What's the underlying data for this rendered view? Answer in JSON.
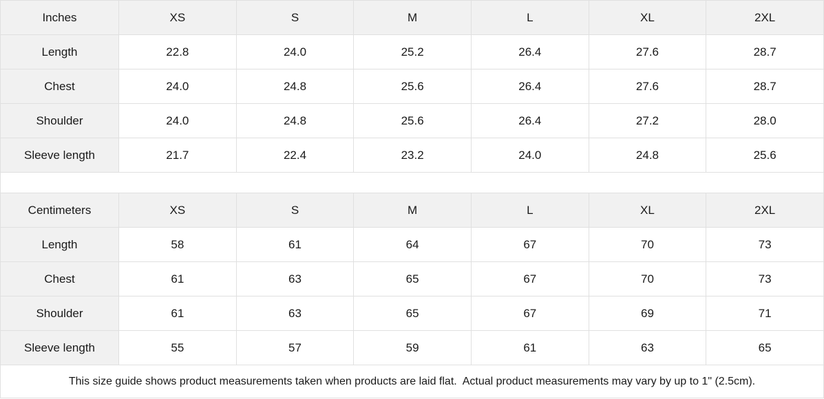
{
  "chart_data": [
    {
      "type": "table",
      "unit": "Inches",
      "columns": [
        "Inches",
        "XS",
        "S",
        "M",
        "L",
        "XL",
        "2XL"
      ],
      "rows": [
        {
          "label": "Length",
          "values": [
            "22.8",
            "24.0",
            "25.2",
            "26.4",
            "27.6",
            "28.7"
          ]
        },
        {
          "label": "Chest",
          "values": [
            "24.0",
            "24.8",
            "25.6",
            "26.4",
            "27.6",
            "28.7"
          ]
        },
        {
          "label": "Shoulder",
          "values": [
            "24.0",
            "24.8",
            "25.6",
            "26.4",
            "27.2",
            "28.0"
          ]
        },
        {
          "label": "Sleeve length",
          "values": [
            "21.7",
            "22.4",
            "23.2",
            "24.0",
            "24.8",
            "25.6"
          ]
        }
      ]
    },
    {
      "type": "table",
      "unit": "Centimeters",
      "columns": [
        "Centimeters",
        "XS",
        "S",
        "M",
        "L",
        "XL",
        "2XL"
      ],
      "rows": [
        {
          "label": "Length",
          "values": [
            "58",
            "61",
            "64",
            "67",
            "70",
            "73"
          ]
        },
        {
          "label": "Chest",
          "values": [
            "61",
            "63",
            "65",
            "67",
            "70",
            "73"
          ]
        },
        {
          "label": "Shoulder",
          "values": [
            "61",
            "63",
            "65",
            "67",
            "69",
            "71"
          ]
        },
        {
          "label": "Sleeve length",
          "values": [
            "55",
            "57",
            "59",
            "61",
            "63",
            "65"
          ]
        }
      ]
    }
  ],
  "footer": {
    "note": "This size guide shows product measurements taken when products are laid flat.  Actual product measurements may vary by up to 1\" (2.5cm)."
  },
  "colors": {
    "header_background": "#f1f1f1",
    "border": "#e0e0e0",
    "text": "#1a1a1a",
    "background": "#ffffff"
  }
}
